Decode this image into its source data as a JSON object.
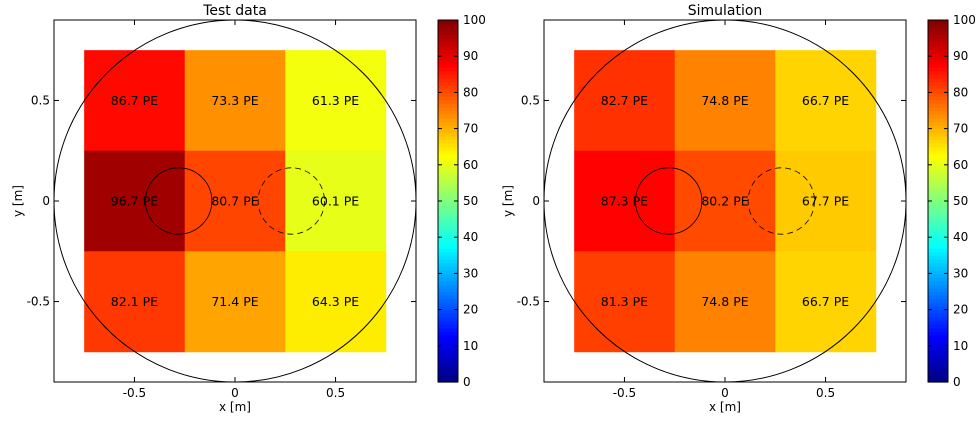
{
  "chart_data": [
    {
      "type": "heatmap",
      "title": "Test data",
      "xlabel": "x [m]",
      "ylabel": "y [m]",
      "xlim": [
        -0.9,
        0.9
      ],
      "ylim": [
        -0.9,
        0.9
      ],
      "xticks": [
        -0.5,
        0,
        0.5
      ],
      "xtick_labels": [
        "-0.5",
        "0",
        "0.5"
      ],
      "yticks": [
        -0.5,
        0,
        0.5
      ],
      "ytick_labels": [
        "-0.5",
        "0",
        "0.5"
      ],
      "cell_edges": [
        -0.75,
        -0.25,
        0.25,
        0.75
      ],
      "rows_top_to_bottom": [
        [
          86.7,
          73.3,
          61.3
        ],
        [
          96.7,
          80.7,
          60.1
        ],
        [
          82.1,
          71.4,
          64.3
        ]
      ],
      "cell_unit": "PE",
      "overlays": [
        {
          "shape": "circle",
          "center": [
            0,
            0
          ],
          "radius": 0.9,
          "style": "solid"
        },
        {
          "shape": "circle",
          "center": [
            -0.28,
            0
          ],
          "radius": 0.165,
          "style": "solid"
        },
        {
          "shape": "circle",
          "center": [
            0.28,
            0
          ],
          "radius": 0.165,
          "style": "dashed"
        }
      ],
      "colorbar": {
        "min": 0,
        "max": 100,
        "ticks": [
          0,
          10,
          20,
          30,
          40,
          50,
          60,
          70,
          80,
          90,
          100
        ],
        "colormap": "jet"
      },
      "grid": false
    },
    {
      "type": "heatmap",
      "title": "Simulation",
      "xlabel": "x [m]",
      "ylabel": "y [m]",
      "xlim": [
        -0.9,
        0.9
      ],
      "ylim": [
        -0.9,
        0.9
      ],
      "xticks": [
        -0.5,
        0,
        0.5
      ],
      "xtick_labels": [
        "-0.5",
        "0",
        "0.5"
      ],
      "yticks": [
        -0.5,
        0,
        0.5
      ],
      "ytick_labels": [
        "-0.5",
        "0",
        "0.5"
      ],
      "cell_edges": [
        -0.75,
        -0.25,
        0.25,
        0.75
      ],
      "rows_top_to_bottom": [
        [
          82.7,
          74.8,
          66.7
        ],
        [
          87.3,
          80.2,
          67.7
        ],
        [
          81.3,
          74.8,
          66.7
        ]
      ],
      "cell_unit": "PE",
      "overlays": [
        {
          "shape": "circle",
          "center": [
            0,
            0
          ],
          "radius": 0.9,
          "style": "solid"
        },
        {
          "shape": "circle",
          "center": [
            -0.28,
            0
          ],
          "radius": 0.165,
          "style": "solid"
        },
        {
          "shape": "circle",
          "center": [
            0.28,
            0
          ],
          "radius": 0.165,
          "style": "dashed"
        }
      ],
      "colorbar": {
        "min": 0,
        "max": 100,
        "ticks": [
          0,
          10,
          20,
          30,
          40,
          50,
          60,
          70,
          80,
          90,
          100
        ],
        "colormap": "jet"
      },
      "grid": false
    }
  ]
}
